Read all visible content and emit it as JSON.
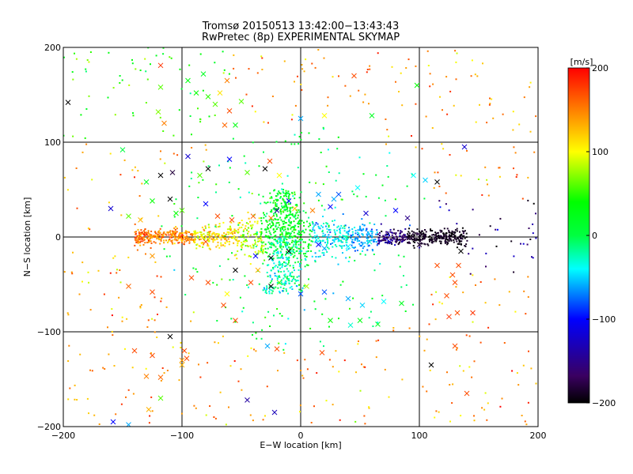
{
  "chart_data": {
    "type": "scatter",
    "title": "Tromsø 20150513 13:42:00−13:43:43",
    "subtitle": "RwPretec (8p) EXPERIMENTAL SKYMAP",
    "xlabel": "E−W location [km]",
    "ylabel": "N−S location [km]",
    "xlim": [
      -200,
      200
    ],
    "ylim": [
      -200,
      200
    ],
    "xticks": [
      -200,
      -100,
      0,
      100,
      200
    ],
    "yticks": [
      -200,
      -100,
      0,
      100,
      200
    ],
    "x_tick_labels": [
      "−200",
      "−100",
      "0",
      "100",
      "200"
    ],
    "y_tick_labels": [
      "−200",
      "−100",
      "0",
      "100",
      "200"
    ],
    "grid": true,
    "colorbar": {
      "label": "[m/s]",
      "range": [
        -200,
        200
      ],
      "ticks": [
        200,
        100,
        0,
        -100,
        -200
      ],
      "tick_labels": [
        "200",
        "100",
        "0",
        "−100",
        "−200"
      ],
      "colormap": [
        "#000000",
        "#3a0060",
        "#0000ff",
        "#00ffff",
        "#00ff00",
        "#ffff00",
        "#ff0000"
      ]
    },
    "markers": [
      {
        "x": -196,
        "y": 142,
        "v": -200
      },
      {
        "x": -118,
        "y": 181,
        "v": 180
      },
      {
        "x": -118,
        "y": 158,
        "v": 60
      },
      {
        "x": -115,
        "y": 120,
        "v": 150
      },
      {
        "x": -120,
        "y": 132,
        "v": 70
      },
      {
        "x": -95,
        "y": 165,
        "v": 30
      },
      {
        "x": -88,
        "y": 152,
        "v": 40
      },
      {
        "x": -82,
        "y": 172,
        "v": 20
      },
      {
        "x": -78,
        "y": 148,
        "v": 50
      },
      {
        "x": -72,
        "y": 140,
        "v": 60
      },
      {
        "x": -68,
        "y": 152,
        "v": 110
      },
      {
        "x": -62,
        "y": 165,
        "v": 150
      },
      {
        "x": -60,
        "y": 133,
        "v": 170
      },
      {
        "x": -55,
        "y": 118,
        "v": 30
      },
      {
        "x": -50,
        "y": 143,
        "v": 60
      },
      {
        "x": -64,
        "y": 118,
        "v": 160
      },
      {
        "x": 0,
        "y": 125,
        "v": -60
      },
      {
        "x": 20,
        "y": 128,
        "v": 100
      },
      {
        "x": 45,
        "y": 170,
        "v": 170
      },
      {
        "x": 60,
        "y": 128,
        "v": 20
      },
      {
        "x": 98,
        "y": 160,
        "v": 40
      },
      {
        "x": -150,
        "y": 92,
        "v": 0
      },
      {
        "x": -118,
        "y": 65,
        "v": -200
      },
      {
        "x": -130,
        "y": 58,
        "v": 20
      },
      {
        "x": -110,
        "y": 40,
        "v": -200
      },
      {
        "x": -125,
        "y": 38,
        "v": 40
      },
      {
        "x": -108,
        "y": 68,
        "v": -180
      },
      {
        "x": -95,
        "y": 85,
        "v": -120
      },
      {
        "x": -85,
        "y": 65,
        "v": 60
      },
      {
        "x": -78,
        "y": 72,
        "v": -200
      },
      {
        "x": -60,
        "y": 82,
        "v": -100
      },
      {
        "x": -45,
        "y": 68,
        "v": 60
      },
      {
        "x": -30,
        "y": 72,
        "v": -200
      },
      {
        "x": -26,
        "y": 80,
        "v": 170
      },
      {
        "x": -18,
        "y": 65,
        "v": 100
      },
      {
        "x": -10,
        "y": 38,
        "v": -100
      },
      {
        "x": 15,
        "y": 45,
        "v": -60
      },
      {
        "x": 28,
        "y": 40,
        "v": -60
      },
      {
        "x": 32,
        "y": 45,
        "v": -80
      },
      {
        "x": 48,
        "y": 52,
        "v": -40
      },
      {
        "x": 95,
        "y": 65,
        "v": -40
      },
      {
        "x": 105,
        "y": 60,
        "v": -50
      },
      {
        "x": 115,
        "y": 58,
        "v": -200
      },
      {
        "x": 138,
        "y": 95,
        "v": -120
      },
      {
        "x": -160,
        "y": 30,
        "v": -120
      },
      {
        "x": -145,
        "y": 22,
        "v": 60
      },
      {
        "x": -135,
        "y": 18,
        "v": 130
      },
      {
        "x": -105,
        "y": 25,
        "v": 40
      },
      {
        "x": -100,
        "y": 28,
        "v": 60
      },
      {
        "x": -80,
        "y": 35,
        "v": -100
      },
      {
        "x": -70,
        "y": 22,
        "v": 170
      },
      {
        "x": -58,
        "y": 18,
        "v": 170
      },
      {
        "x": -40,
        "y": 22,
        "v": 160
      },
      {
        "x": -25,
        "y": 20,
        "v": 150
      },
      {
        "x": -20,
        "y": 28,
        "v": -140
      },
      {
        "x": -5,
        "y": 30,
        "v": 120
      },
      {
        "x": 10,
        "y": 28,
        "v": 150
      },
      {
        "x": 25,
        "y": 32,
        "v": -100
      },
      {
        "x": 55,
        "y": 25,
        "v": -120
      },
      {
        "x": 80,
        "y": 28,
        "v": -100
      },
      {
        "x": 90,
        "y": 20,
        "v": -150
      },
      {
        "x": -130,
        "y": 3,
        "v": 180
      },
      {
        "x": -108,
        "y": 2,
        "v": 130
      },
      {
        "x": -95,
        "y": -3,
        "v": 150
      },
      {
        "x": -80,
        "y": -5,
        "v": 170
      },
      {
        "x": -38,
        "y": -20,
        "v": -100
      },
      {
        "x": -25,
        "y": -22,
        "v": -200
      },
      {
        "x": -10,
        "y": -15,
        "v": -200
      },
      {
        "x": 15,
        "y": -8,
        "v": -100
      },
      {
        "x": 20,
        "y": -12,
        "v": -60
      },
      {
        "x": 40,
        "y": -10,
        "v": -40
      },
      {
        "x": 58,
        "y": -5,
        "v": -30
      },
      {
        "x": 75,
        "y": -5,
        "v": -120
      },
      {
        "x": 100,
        "y": -8,
        "v": -180
      },
      {
        "x": 135,
        "y": -15,
        "v": -200
      },
      {
        "x": -125,
        "y": -20,
        "v": 140
      },
      {
        "x": -145,
        "y": -52,
        "v": 160
      },
      {
        "x": -125,
        "y": -58,
        "v": 170
      },
      {
        "x": -92,
        "y": -43,
        "v": 170
      },
      {
        "x": -78,
        "y": -48,
        "v": 170
      },
      {
        "x": -62,
        "y": -60,
        "v": 100
      },
      {
        "x": -55,
        "y": -35,
        "v": -200
      },
      {
        "x": -42,
        "y": -48,
        "v": 170
      },
      {
        "x": -36,
        "y": -35,
        "v": 130
      },
      {
        "x": -25,
        "y": -52,
        "v": -200
      },
      {
        "x": -18,
        "y": -48,
        "v": 60
      },
      {
        "x": 0,
        "y": -60,
        "v": -80
      },
      {
        "x": 5,
        "y": -52,
        "v": 80
      },
      {
        "x": 20,
        "y": -58,
        "v": -80
      },
      {
        "x": 40,
        "y": -65,
        "v": -60
      },
      {
        "x": 52,
        "y": -72,
        "v": -50
      },
      {
        "x": 70,
        "y": -68,
        "v": -40
      },
      {
        "x": 85,
        "y": -70,
        "v": 20
      },
      {
        "x": 115,
        "y": -30,
        "v": 170
      },
      {
        "x": 128,
        "y": -40,
        "v": 170
      },
      {
        "x": 130,
        "y": -48,
        "v": 170
      },
      {
        "x": 133,
        "y": -30,
        "v": 170
      },
      {
        "x": 123,
        "y": -62,
        "v": 170
      },
      {
        "x": 125,
        "y": -84,
        "v": 180
      },
      {
        "x": 132,
        "y": -80,
        "v": 170
      },
      {
        "x": 145,
        "y": -80,
        "v": 180
      },
      {
        "x": -65,
        "y": -72,
        "v": 170
      },
      {
        "x": -55,
        "y": -88,
        "v": 170
      },
      {
        "x": -110,
        "y": -105,
        "v": -200
      },
      {
        "x": -140,
        "y": -120,
        "v": 170
      },
      {
        "x": -125,
        "y": -125,
        "v": 170
      },
      {
        "x": -98,
        "y": -120,
        "v": 170
      },
      {
        "x": -96,
        "y": -128,
        "v": 170
      },
      {
        "x": -100,
        "y": -130,
        "v": 140
      },
      {
        "x": -100,
        "y": -135,
        "v": 130
      },
      {
        "x": -28,
        "y": -115,
        "v": -60
      },
      {
        "x": -20,
        "y": -118,
        "v": 170
      },
      {
        "x": 18,
        "y": -122,
        "v": 170
      },
      {
        "x": 25,
        "y": -88,
        "v": 40
      },
      {
        "x": 50,
        "y": -88,
        "v": 30
      },
      {
        "x": 42,
        "y": -93,
        "v": -30
      },
      {
        "x": 65,
        "y": -92,
        "v": 20
      },
      {
        "x": 110,
        "y": -135,
        "v": -200
      },
      {
        "x": 130,
        "y": -115,
        "v": 170
      },
      {
        "x": 140,
        "y": -165,
        "v": 170
      },
      {
        "x": -130,
        "y": -147,
        "v": 150
      },
      {
        "x": -118,
        "y": -148,
        "v": 160
      },
      {
        "x": -118,
        "y": -170,
        "v": 60
      },
      {
        "x": -128,
        "y": -182,
        "v": 130
      },
      {
        "x": -45,
        "y": -172,
        "v": -140
      },
      {
        "x": -22,
        "y": -185,
        "v": -130
      },
      {
        "x": -158,
        "y": -195,
        "v": -100
      },
      {
        "x": -145,
        "y": -198,
        "v": -60
      }
    ],
    "points": []
  }
}
